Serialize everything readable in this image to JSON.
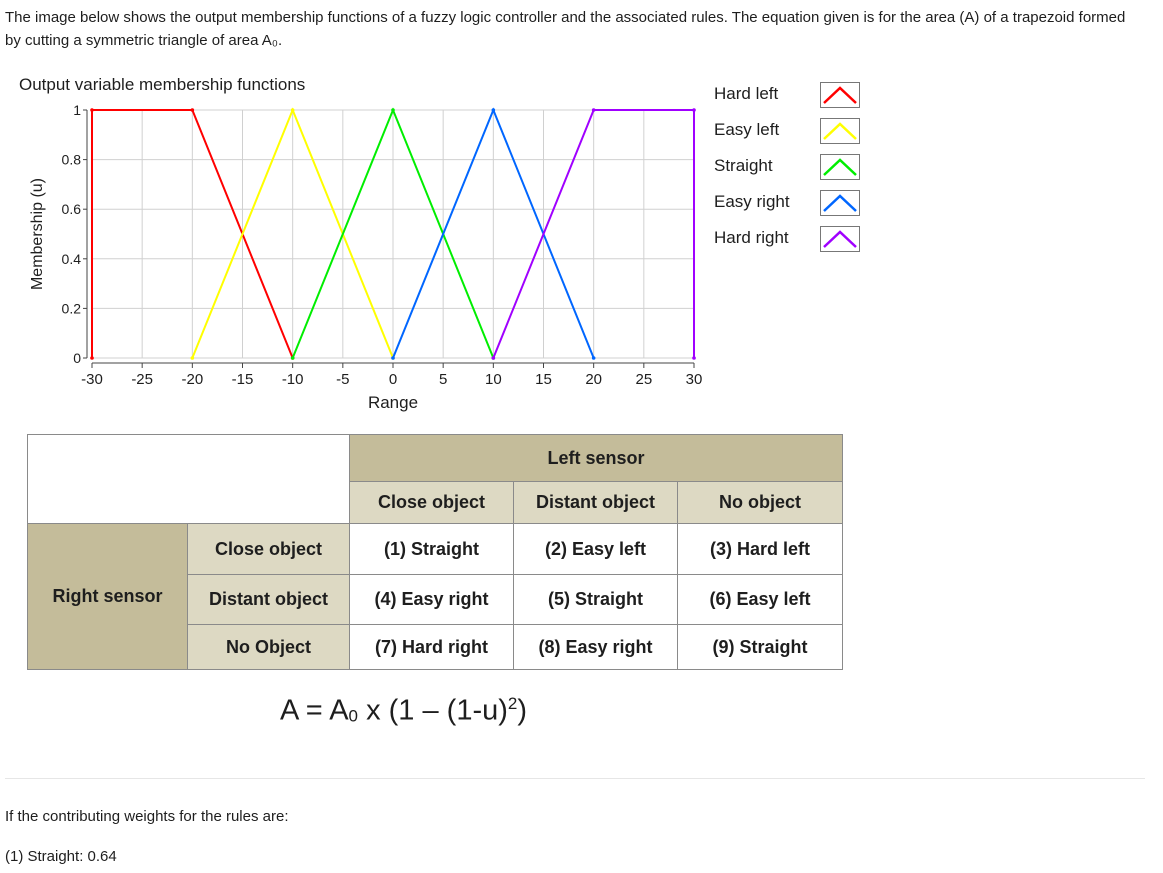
{
  "intro_text": "The image below shows the output membership functions of a fuzzy logic controller and the associated rules. The equation given is for the area (A) of a trapezoid formed by cutting a symmetric triangle of area A₀.",
  "chart_data": {
    "type": "line",
    "title": "Output variable membership functions",
    "xlabel": "Range",
    "ylabel": "Membership (u)",
    "xlim": [
      -30,
      30
    ],
    "ylim": [
      0,
      1
    ],
    "xticks": [
      -30,
      -25,
      -20,
      -15,
      -10,
      -5,
      0,
      5,
      10,
      15,
      20,
      25,
      30
    ],
    "yticks": [
      0,
      0.2,
      0.4,
      0.6,
      0.8,
      1
    ],
    "ytick_labels": [
      "0",
      "0.2",
      "0.4",
      "0.6",
      "0.8",
      "1"
    ],
    "grid": true,
    "legend_position": "right",
    "series": [
      {
        "name": "Hard left",
        "color": "#ff0000",
        "x": [
          -30,
          -30,
          -20,
          -10
        ],
        "y": [
          0,
          1,
          1,
          0
        ]
      },
      {
        "name": "Easy left",
        "color": "#ffff00",
        "x": [
          -20,
          -10,
          0
        ],
        "y": [
          0,
          1,
          0
        ]
      },
      {
        "name": "Straight",
        "color": "#00ee00",
        "x": [
          -10,
          0,
          10
        ],
        "y": [
          0,
          1,
          0
        ]
      },
      {
        "name": "Easy right",
        "color": "#0066ff",
        "x": [
          0,
          10,
          20
        ],
        "y": [
          0,
          1,
          0
        ]
      },
      {
        "name": "Hard right",
        "color": "#a000ff",
        "x": [
          10,
          20,
          30,
          30
        ],
        "y": [
          0,
          1,
          1,
          0
        ]
      }
    ]
  },
  "rules_table": {
    "left_sensor_header": "Left sensor",
    "left_columns": [
      "Close object",
      "Distant object",
      "No object"
    ],
    "right_sensor_header": "Right sensor",
    "rows": [
      {
        "label": "Close object",
        "cells": [
          "(1) Straight",
          "(2) Easy left",
          "(3) Hard left"
        ]
      },
      {
        "label": "Distant object",
        "cells": [
          "(4) Easy right",
          "(5) Straight",
          "(6) Easy left"
        ]
      },
      {
        "label": "No Object",
        "cells": [
          "(7) Hard right",
          "(8) Easy right",
          "(9) Straight"
        ]
      }
    ],
    "header_color": "#c4bc9a",
    "subheader_color": "#ddd9c3"
  },
  "formula": {
    "lhs": "A = A",
    "sub": "0",
    "middle": " x (1 – (1-u)",
    "sup": "2",
    "end": ")"
  },
  "weights_intro": "If the contributing weights for the rules are:",
  "weights": [
    "(1) Straight: 0.64"
  ]
}
